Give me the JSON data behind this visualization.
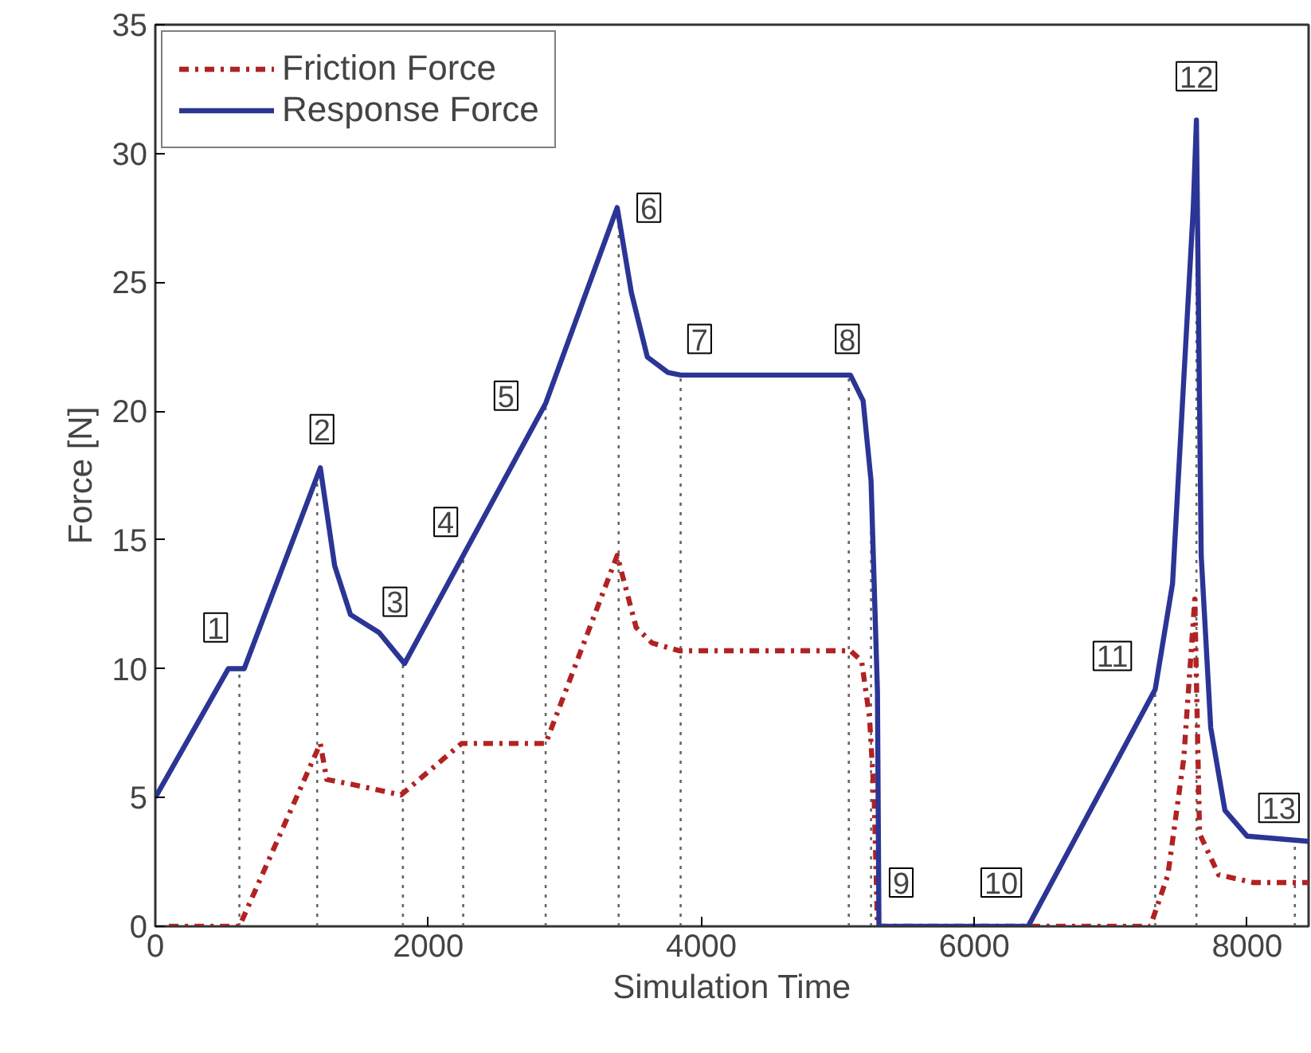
{
  "chart_data": {
    "type": "line",
    "xlabel": "Simulation Time",
    "ylabel": "Force [N]",
    "xlim": [
      0,
      8450
    ],
    "ylim": [
      0,
      35
    ],
    "xticks": [
      0,
      2000,
      4000,
      6000,
      8000
    ],
    "yticks": [
      0,
      5,
      10,
      15,
      20,
      25,
      30,
      35
    ],
    "grid": false,
    "legend": "top left",
    "series": [
      {
        "name": "Friction Force",
        "color": "#b22222",
        "line_style": "dashdot",
        "x": [
          100,
          616,
          1209,
          1256,
          1450,
          1800,
          2244,
          2860,
          3384,
          3523,
          3640,
          3837,
          5093,
          5175,
          5233,
          5267,
          5291,
          7290,
          7419,
          7535,
          7616,
          7651,
          7791,
          8047,
          8450
        ],
        "values": [
          0,
          0,
          7.1,
          5.7,
          5.5,
          5.1,
          7.1,
          7.1,
          14.4,
          11.6,
          11.0,
          10.7,
          10.7,
          10.3,
          8.1,
          5,
          0,
          0,
          2,
          6.5,
          12.7,
          3.6,
          2.0,
          1.7,
          1.7
        ]
      },
      {
        "name": "Response Force",
        "color": "#2b3595",
        "line_style": "solid",
        "x": [
          0,
          535,
          651,
          1209,
          1314,
          1430,
          1640,
          1826,
          2860,
          3384,
          3488,
          3605,
          3756,
          3849,
          5093,
          5186,
          5244,
          5291,
          5302,
          6395,
          7326,
          7453,
          7535,
          7605,
          7628,
          7663,
          7733,
          7837,
          8000,
          8450
        ],
        "values": [
          5,
          10,
          10,
          17.8,
          14,
          12.1,
          11.4,
          10.2,
          20.3,
          27.9,
          24.6,
          22.1,
          21.5,
          21.4,
          21.4,
          20.4,
          17.3,
          9.1,
          0,
          0,
          9.2,
          13.3,
          21.2,
          27.9,
          31.3,
          14.4,
          7.7,
          4.5,
          3.5,
          3.3
        ]
      }
    ],
    "ref_lines": [
      {
        "axis": "x",
        "value": 616,
        "color": "#666666",
        "line_style": "dotted"
      },
      {
        "axis": "x",
        "value": 1186,
        "color": "#666666",
        "line_style": "dotted"
      },
      {
        "axis": "x",
        "value": 1814,
        "color": "#666666",
        "line_style": "dotted"
      },
      {
        "axis": "x",
        "value": 2256,
        "color": "#666666",
        "line_style": "dotted"
      },
      {
        "axis": "x",
        "value": 2860,
        "color": "#666666",
        "line_style": "dotted"
      },
      {
        "axis": "x",
        "value": 3395,
        "color": "#666666",
        "line_style": "dotted"
      },
      {
        "axis": "x",
        "value": 3849,
        "color": "#666666",
        "line_style": "dotted"
      },
      {
        "axis": "x",
        "value": 5081,
        "color": "#666666",
        "line_style": "dotted"
      },
      {
        "axis": "x",
        "value": 5244,
        "color": "#666666",
        "line_style": "dotted"
      },
      {
        "axis": "x",
        "value": 7326,
        "color": "#666666",
        "line_style": "dotted"
      },
      {
        "axis": "x",
        "value": 7628,
        "color": "#666666",
        "line_style": "dotted"
      },
      {
        "axis": "x",
        "value": 8349,
        "color": "#666666",
        "line_style": "dotted"
      }
    ],
    "annotations": [
      {
        "text": "1",
        "x": 442,
        "y": 11.6
      },
      {
        "text": "2",
        "x": 1221,
        "y": 19.3
      },
      {
        "text": "3",
        "x": 1756,
        "y": 12.6
      },
      {
        "text": "4",
        "x": 2128,
        "y": 15.7
      },
      {
        "text": "5",
        "x": 2570,
        "y": 20.6
      },
      {
        "text": "6",
        "x": 3616,
        "y": 27.9
      },
      {
        "text": "7",
        "x": 3988,
        "y": 22.8
      },
      {
        "text": "8",
        "x": 5070,
        "y": 22.8
      },
      {
        "text": "9",
        "x": 5465,
        "y": 1.7
      },
      {
        "text": "10",
        "x": 6198,
        "y": 1.7
      },
      {
        "text": "11",
        "x": 7012,
        "y": 10.5
      },
      {
        "text": "12",
        "x": 7628,
        "y": 33
      },
      {
        "text": "13",
        "x": 8233,
        "y": 4.6
      }
    ]
  }
}
